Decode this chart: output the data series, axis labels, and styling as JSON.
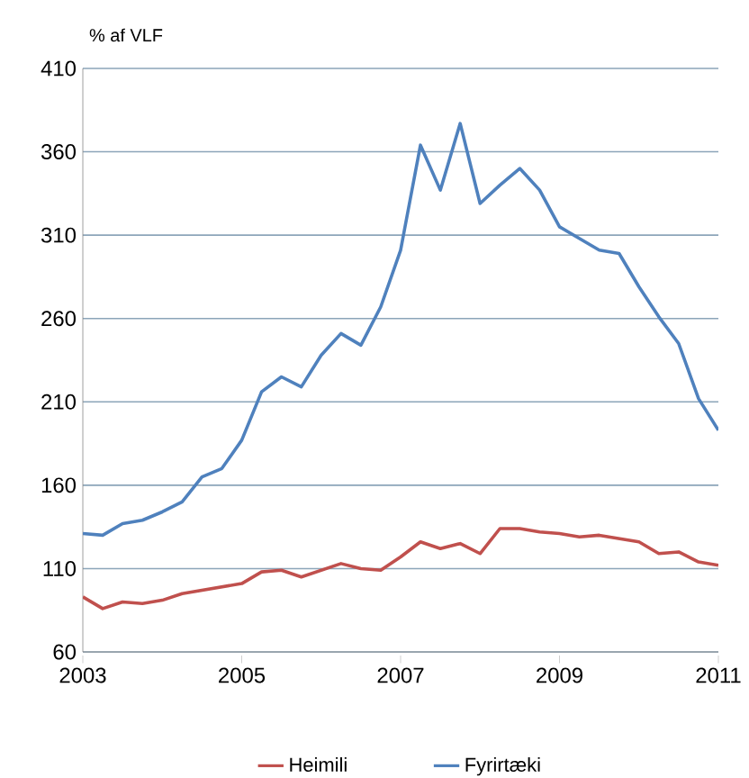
{
  "chart_data": {
    "type": "line",
    "ylabel": "% af VLF",
    "x": [
      2003,
      2003.25,
      2003.5,
      2003.75,
      2004,
      2004.25,
      2004.5,
      2004.75,
      2005,
      2005.25,
      2005.5,
      2005.75,
      2006,
      2006.25,
      2006.5,
      2006.75,
      2007,
      2007.25,
      2007.5,
      2007.75,
      2008,
      2008.25,
      2008.5,
      2008.75,
      2009,
      2009.25,
      2009.5,
      2009.75,
      2010,
      2010.25,
      2010.5,
      2010.75,
      2011
    ],
    "series": [
      {
        "name": "Heimili",
        "color": "#c0504d",
        "values": [
          93,
          86,
          90,
          89,
          91,
          95,
          97,
          99,
          101,
          108,
          109,
          105,
          109,
          113,
          110,
          109,
          117,
          126,
          122,
          125,
          119,
          134,
          134,
          132,
          131,
          129,
          130,
          128,
          126,
          119,
          120,
          114,
          112
        ]
      },
      {
        "name": "Fyrirtæki",
        "color": "#4f81bd",
        "values": [
          131,
          130,
          137,
          139,
          144,
          150,
          165,
          170,
          187,
          216,
          225,
          219,
          238,
          251,
          244,
          267,
          301,
          364,
          337,
          377,
          329,
          340,
          350,
          337,
          315,
          308,
          301,
          299,
          279,
          261,
          245,
          212,
          193
        ]
      }
    ],
    "xlim": [
      2003,
      2011
    ],
    "xticks": [
      2003,
      2005,
      2007,
      2009,
      2011
    ],
    "ylim": [
      60,
      410
    ],
    "yticks": [
      60,
      110,
      160,
      210,
      260,
      310,
      360,
      410
    ],
    "grid": "y",
    "legend": "bottom",
    "marker": "none",
    "line_style": "solid"
  }
}
